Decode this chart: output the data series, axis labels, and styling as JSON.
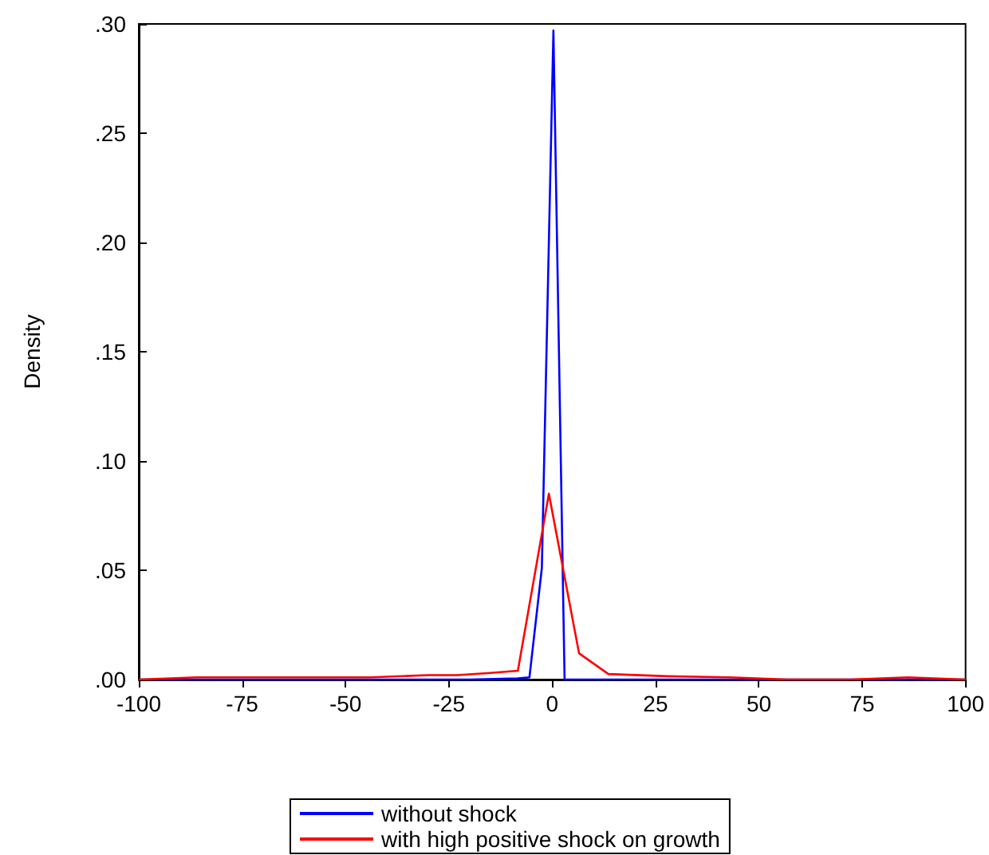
{
  "chart_data": {
    "type": "line",
    "ylabel": "Density",
    "series": [
      {
        "name": "without shock",
        "color": "#0000ff",
        "x": [
          -100,
          -50,
          -20,
          -8.3,
          -5.5,
          -2.5,
          0.3,
          3.0,
          25,
          50,
          100
        ],
        "values": [
          0,
          0,
          0,
          0.0005,
          0.001,
          0.051,
          0.297,
          0,
          0,
          0,
          0
        ]
      },
      {
        "name": "with high positive shock on growth",
        "color": "#ff0000",
        "x": [
          -100,
          -86,
          -72,
          -58,
          -44,
          -30,
          -23,
          -15,
          -8.3,
          -0.8,
          6.5,
          13.6,
          28,
          43,
          57,
          72,
          86,
          100
        ],
        "values": [
          0,
          0.001,
          0.001,
          0.001,
          0.001,
          0.002,
          0.002,
          0.003,
          0.004,
          0.085,
          0.012,
          0.0025,
          0.0015,
          0.001,
          0,
          0,
          0.001,
          0
        ]
      }
    ],
    "xlim": [
      -100,
      100
    ],
    "xticks": [
      -100,
      -75,
      -50,
      -25,
      0,
      25,
      50,
      75,
      100
    ],
    "ylim": [
      0,
      0.3
    ],
    "yticks": [
      {
        "value": 0,
        "label": ".00"
      },
      {
        "value": 0.05,
        "label": ".05"
      },
      {
        "value": 0.1,
        "label": ".10"
      },
      {
        "value": 0.15,
        "label": ".15"
      },
      {
        "value": 0.2,
        "label": ".20"
      },
      {
        "value": 0.25,
        "label": ".25"
      },
      {
        "value": 0.3,
        "label": ".30"
      }
    ],
    "grid": false,
    "legend": "bottom",
    "marker": "none",
    "line_style": "solid"
  }
}
